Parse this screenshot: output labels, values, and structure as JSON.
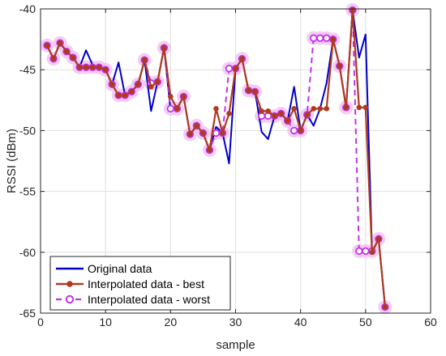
{
  "chart_data": {
    "type": "line",
    "xlabel": "sample",
    "ylabel": "RSSI (dBm)",
    "xlim": [
      0,
      60
    ],
    "ylim": [
      -65,
      -40
    ],
    "xticks": [
      0,
      10,
      20,
      30,
      40,
      50,
      60
    ],
    "yticks": [
      -65,
      -60,
      -55,
      -50,
      -45,
      -40
    ],
    "grid": true,
    "legend_position": "bottom-left",
    "series": [
      {
        "name": "Original data",
        "color": "#0000cc",
        "x": [
          1,
          2,
          3,
          4,
          5,
          6,
          7,
          8,
          9,
          10,
          11,
          12,
          13,
          14,
          15,
          16,
          17,
          18,
          19,
          20,
          21,
          22,
          23,
          24,
          25,
          26,
          27,
          28,
          29,
          30,
          31,
          32,
          33,
          34,
          35,
          36,
          37,
          38,
          39,
          40,
          41,
          42,
          43,
          44,
          45,
          46,
          47,
          48,
          49,
          50,
          51,
          52,
          53
        ],
        "values": [
          -43,
          -44.1,
          -42.8,
          -43.5,
          -44,
          -44.8,
          -43.4,
          -44.6,
          -44.8,
          -45,
          -46.2,
          -44.4,
          -47.1,
          -46.8,
          -46.2,
          -44.2,
          -48.4,
          -46,
          -43.2,
          -48.3,
          -48.2,
          -47.2,
          -50.3,
          -49.6,
          -50.2,
          -51.6,
          -49.7,
          -50.2,
          -52.7,
          -44.9,
          -44.1,
          -46.7,
          -46.8,
          -50.1,
          -50.7,
          -48.8,
          -48.6,
          -49.2,
          -46.4,
          -50,
          -48.7,
          -49.6,
          -48.2,
          -46.1,
          -42.5,
          -44.7,
          -48.1,
          -40.1,
          -44,
          -42.1,
          -60,
          -58.9,
          -64.5
        ]
      },
      {
        "name": "Interpolated data - best",
        "color": "#b03a1e",
        "x": [
          1,
          2,
          3,
          4,
          5,
          6,
          7,
          8,
          9,
          10,
          11,
          12,
          13,
          14,
          15,
          16,
          17,
          18,
          19,
          20,
          21,
          22,
          23,
          24,
          25,
          26,
          27,
          28,
          29,
          30,
          31,
          32,
          33,
          34,
          35,
          36,
          37,
          38,
          39,
          40,
          41,
          42,
          43,
          44,
          45,
          46,
          47,
          48,
          49,
          50,
          51,
          52,
          53
        ],
        "values": [
          -43,
          -44.1,
          -42.8,
          -43.5,
          -44,
          -44.8,
          -44.8,
          -44.8,
          -44.8,
          -45,
          -46.2,
          -47.1,
          -47.1,
          -46.8,
          -46.2,
          -44.2,
          -46.4,
          -46,
          -43.2,
          -47.2,
          -48.2,
          -47.2,
          -50.3,
          -49.6,
          -50.2,
          -51.6,
          -48.2,
          -50.2,
          -48.6,
          -44.9,
          -44.1,
          -46.7,
          -46.8,
          -48.4,
          -48.4,
          -48.8,
          -48.6,
          -49.2,
          -48.2,
          -50,
          -48.7,
          -48.2,
          -48.2,
          -48.2,
          -42.5,
          -44.7,
          -48.1,
          -40.1,
          -48.1,
          -48.1,
          -60,
          -58.9,
          -64.5
        ]
      },
      {
        "name": "Interpolated data - worst",
        "color": "#c033e8",
        "x": [
          1,
          2,
          3,
          4,
          5,
          6,
          7,
          8,
          9,
          10,
          11,
          12,
          13,
          14,
          15,
          16,
          17,
          18,
          19,
          20,
          21,
          22,
          23,
          24,
          25,
          26,
          27,
          28,
          29,
          30,
          31,
          32,
          33,
          34,
          35,
          36,
          37,
          38,
          39,
          40,
          41,
          42,
          43,
          44,
          45,
          46,
          47,
          48,
          49,
          50,
          51,
          52,
          53
        ],
        "values": [
          -43,
          -44.1,
          -42.8,
          -43.5,
          -44,
          -44.8,
          -44.8,
          -44.8,
          -44.8,
          -45,
          -46.2,
          -47.1,
          -47.1,
          -46.8,
          -46.2,
          -44.2,
          -46.1,
          -46,
          -43.2,
          -48.2,
          -48.2,
          -47.2,
          -50.3,
          -49.6,
          -50.2,
          -51.6,
          -50.2,
          -50.2,
          -44.9,
          -44.9,
          -44.1,
          -46.7,
          -46.8,
          -48.8,
          -48.8,
          -48.8,
          -48.6,
          -49.2,
          -50,
          -50,
          -48.7,
          -42.4,
          -42.4,
          -42.4,
          -42.5,
          -44.7,
          -48.1,
          -40.1,
          -59.9,
          -59.9,
          -59.9,
          -58.9,
          -64.5
        ]
      }
    ]
  }
}
